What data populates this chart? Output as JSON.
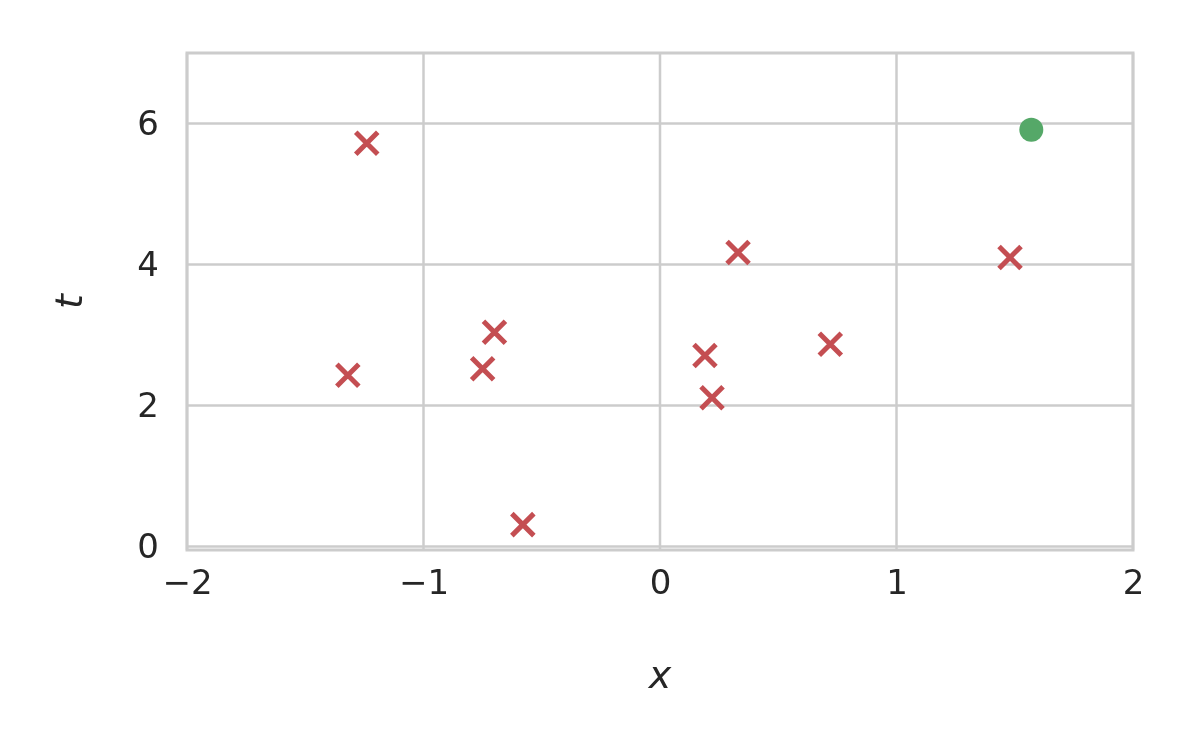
{
  "chart_data": {
    "type": "scatter",
    "xlabel": "x",
    "ylabel": "t",
    "xlim": [
      -2,
      2
    ],
    "ylim": [
      -0.05,
      7
    ],
    "xticks": [
      {
        "value": -2,
        "label": "−2"
      },
      {
        "value": -1,
        "label": "−1"
      },
      0,
      1,
      2
    ],
    "yticks": [
      0,
      2,
      4,
      6
    ],
    "grid": true,
    "series": [
      {
        "color": "#c44e52",
        "marker": "cross",
        "x": [
          -1.24,
          -1.32,
          -0.75,
          -0.7,
          -0.58,
          0.19,
          0.22,
          0.33,
          0.72,
          1.48
        ],
        "values": [
          5.72,
          2.43,
          2.52,
          3.04,
          0.31,
          2.71,
          2.11,
          4.17,
          2.87,
          4.1
        ]
      },
      {
        "color": "#55a868",
        "marker": "circle",
        "x": [
          1.57
        ],
        "values": [
          5.91
        ]
      }
    ]
  }
}
